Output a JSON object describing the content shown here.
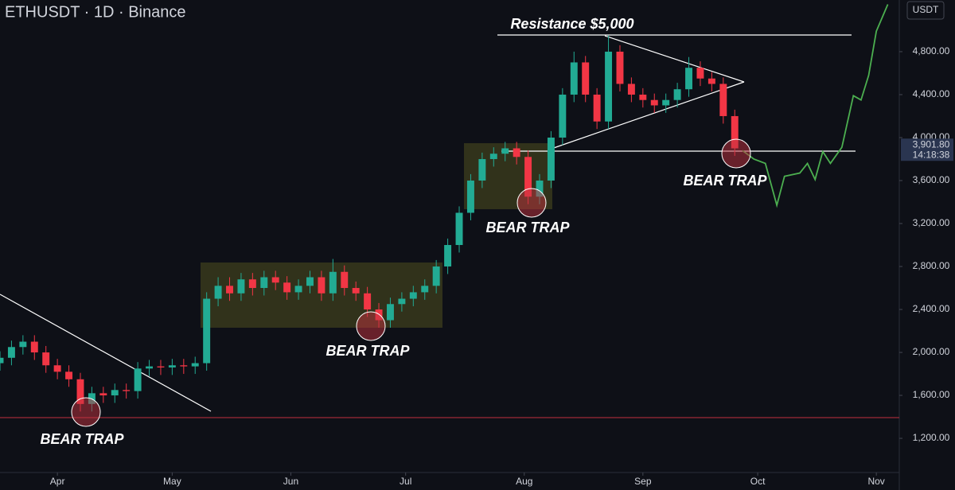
{
  "chart_data": {
    "type": "candlestick",
    "title": "ETHUSDT · 1D · Binance",
    "currency": "USDT",
    "x": [
      -15,
      -12,
      -9,
      -6,
      -3,
      0,
      3,
      6,
      9,
      12,
      15,
      18,
      21,
      24,
      27,
      30,
      33,
      36,
      39,
      42,
      45,
      48,
      51,
      54,
      57,
      60,
      63,
      66,
      69,
      72,
      75,
      78,
      81,
      84,
      87,
      90,
      93,
      96,
      99,
      102,
      105,
      108,
      111,
      114,
      117,
      120,
      123,
      126,
      129,
      132,
      135,
      138,
      141,
      144,
      147,
      150,
      153,
      156,
      159,
      162,
      165,
      168,
      171,
      174,
      177
    ],
    "open": [
      1900,
      1950,
      2050,
      2100,
      2000,
      1880,
      1820,
      1750,
      1520,
      1620,
      1600,
      1650,
      1640,
      1850,
      1870,
      1860,
      1880,
      1870,
      1900,
      2500,
      2620,
      2550,
      2680,
      2600,
      2700,
      2650,
      2560,
      2620,
      2700,
      2550,
      2750,
      2600,
      2550,
      2400,
      2300,
      2450,
      2500,
      2560,
      2620,
      2800,
      3000,
      3300,
      3600,
      3800,
      3850,
      3900,
      3820,
      3450,
      3600,
      4000,
      4400,
      4700,
      4400,
      4150,
      4800,
      4500,
      4400,
      4350,
      4300,
      4350,
      4450,
      4650,
      4550,
      4500,
      4200
    ],
    "high": [
      2010,
      2110,
      2160,
      2160,
      2060,
      1940,
      1880,
      1810,
      1680,
      1680,
      1710,
      1710,
      1910,
      1930,
      1930,
      1940,
      1940,
      1960,
      2560,
      2700,
      2700,
      2740,
      2740,
      2760,
      2760,
      2710,
      2680,
      2760,
      2760,
      2870,
      2810,
      2660,
      2610,
      2460,
      2510,
      2560,
      2620,
      2680,
      2860,
      3060,
      3360,
      3660,
      3860,
      3910,
      3960,
      3960,
      3880,
      3660,
      4060,
      4460,
      4800,
      4760,
      4460,
      4950,
      4860,
      4560,
      4460,
      4410,
      4410,
      4510,
      4750,
      4710,
      4610,
      4560,
      4260
    ],
    "low": [
      1830,
      1880,
      1980,
      1930,
      1810,
      1750,
      1680,
      1450,
      1450,
      1530,
      1530,
      1570,
      1570,
      1780,
      1790,
      1790,
      1800,
      1800,
      1830,
      2430,
      2480,
      2480,
      2530,
      2530,
      2580,
      2490,
      2490,
      2550,
      2480,
      2480,
      2530,
      2480,
      2330,
      2230,
      2230,
      2380,
      2430,
      2490,
      2550,
      2730,
      2930,
      3230,
      3530,
      3730,
      3780,
      3750,
      3380,
      3380,
      3530,
      3930,
      4330,
      4330,
      4080,
      4080,
      4430,
      4330,
      4280,
      4230,
      4230,
      4280,
      4380,
      4480,
      4430,
      4130,
      3830
    ],
    "close": [
      1950,
      2050,
      2100,
      2000,
      1880,
      1820,
      1750,
      1520,
      1620,
      1600,
      1650,
      1640,
      1850,
      1870,
      1860,
      1880,
      1870,
      1900,
      2500,
      2620,
      2550,
      2680,
      2600,
      2700,
      2650,
      2560,
      2620,
      2700,
      2550,
      2750,
      2600,
      2550,
      2400,
      2300,
      2450,
      2500,
      2560,
      2620,
      2800,
      3000,
      3300,
      3600,
      3800,
      3850,
      3900,
      3820,
      3450,
      3600,
      4000,
      4400,
      4700,
      4400,
      4150,
      4800,
      4500,
      4400,
      4350,
      4300,
      4350,
      4450,
      4650,
      4550,
      4500,
      4200,
      3900
    ],
    "up_color": "#22ab94",
    "down_color": "#f23645",
    "projection": {
      "x": [
        179,
        182,
        185,
        188,
        190,
        194,
        196,
        198,
        200,
        202,
        205,
        208,
        210,
        212,
        214,
        217
      ],
      "values": [
        3880,
        3800,
        3760,
        3370,
        3640,
        3670,
        3760,
        3610,
        3870,
        3760,
        3910,
        4390,
        4350,
        4580,
        4990,
        5240
      ],
      "color": "#4caf50"
    },
    "xlim": [
      -15,
      220
    ],
    "xticks": [
      {
        "value": 0,
        "label": "Apr"
      },
      {
        "value": 30,
        "label": "May"
      },
      {
        "value": 61,
        "label": "Jun"
      },
      {
        "value": 91,
        "label": "Jul"
      },
      {
        "value": 122,
        "label": "Aug"
      },
      {
        "value": 153,
        "label": "Sep"
      },
      {
        "value": 183,
        "label": "Oct"
      },
      {
        "value": 214,
        "label": "Nov"
      }
    ],
    "ylim": [
      882,
      5281
    ],
    "yticks": [
      {
        "value": 1200,
        "label": "1,200.00"
      },
      {
        "value": 1600,
        "label": "1,600.00"
      },
      {
        "value": 2000,
        "label": "2,000.00"
      },
      {
        "value": 2400,
        "label": "2,400.00"
      },
      {
        "value": 2800,
        "label": "2,800.00"
      },
      {
        "value": 3200,
        "label": "3,200.00"
      },
      {
        "value": 3600,
        "label": "3,600.00"
      },
      {
        "value": 4000,
        "label": "4,000.00"
      },
      {
        "value": 4400,
        "label": "4,400.00"
      },
      {
        "value": 4800,
        "label": "4,800.00"
      }
    ],
    "grid": false,
    "last_price": {
      "value": 3901.8,
      "label": "3,901.80"
    },
    "countdown": "14:18:38",
    "annotations": [
      "Resistance $5,000",
      "BEAR TRAP",
      "BEAR TRAP",
      "BEAR TRAP",
      "BEAR TRAP"
    ]
  }
}
